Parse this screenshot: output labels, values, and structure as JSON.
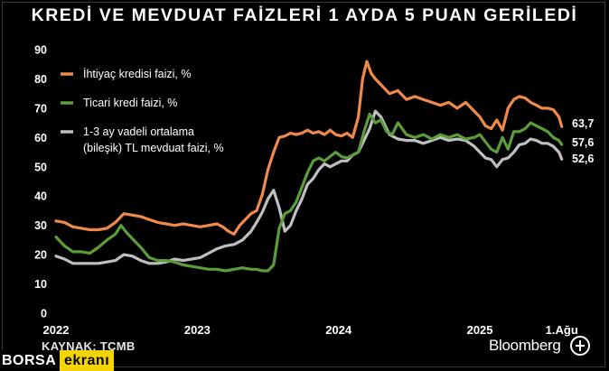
{
  "title": "KREDİ VE MEVDUAT FAİZLERİ 1 AYDA 5 PUAN GERİLEDİ",
  "source": "KAYNAK: TCMB",
  "brand": "Bloomberg",
  "watermark": {
    "part1": "BORSA",
    "part2": "ekranı"
  },
  "chart_data": {
    "type": "line",
    "ylim": [
      0,
      90
    ],
    "yticks": [
      0,
      10,
      20,
      30,
      40,
      50,
      60,
      70,
      80,
      90
    ],
    "xlim": [
      2022.0,
      2025.62
    ],
    "xticks": [
      {
        "pos": 2022.0,
        "label": "2022"
      },
      {
        "pos": 2023.0,
        "label": "2023"
      },
      {
        "pos": 2024.0,
        "label": "2024"
      },
      {
        "pos": 2025.0,
        "label": "2025"
      },
      {
        "pos": 2025.58,
        "label": "1.Ağu"
      }
    ],
    "grid": false,
    "legend_position": "top-left",
    "series": [
      {
        "name": "İhtiyaç kredisi faizi, %",
        "color": "#f08a4b",
        "end_label": "63,7",
        "x": [
          2022.0,
          2022.06,
          2022.12,
          2022.18,
          2022.24,
          2022.3,
          2022.36,
          2022.42,
          2022.48,
          2022.54,
          2022.6,
          2022.66,
          2022.72,
          2022.78,
          2022.84,
          2022.9,
          2022.96,
          2023.02,
          2023.08,
          2023.14,
          2023.18,
          2023.22,
          2023.26,
          2023.3,
          2023.34,
          2023.38,
          2023.42,
          2023.46,
          2023.5,
          2023.54,
          2023.58,
          2023.62,
          2023.66,
          2023.7,
          2023.74,
          2023.78,
          2023.82,
          2023.86,
          2023.9,
          2023.94,
          2023.98,
          2024.02,
          2024.06,
          2024.1,
          2024.14,
          2024.17,
          2024.2,
          2024.23,
          2024.26,
          2024.3,
          2024.36,
          2024.42,
          2024.48,
          2024.54,
          2024.6,
          2024.66,
          2024.72,
          2024.78,
          2024.84,
          2024.9,
          2024.96,
          2025.0,
          2025.04,
          2025.08,
          2025.12,
          2025.16,
          2025.2,
          2025.24,
          2025.28,
          2025.32,
          2025.36,
          2025.4,
          2025.44,
          2025.48,
          2025.52,
          2025.56,
          2025.58
        ],
        "values": [
          31.5,
          31.0,
          29.5,
          29.0,
          28.5,
          28.5,
          29.0,
          31.0,
          34.0,
          33.5,
          33.0,
          32.0,
          31.0,
          30.5,
          30.0,
          30.5,
          30.0,
          29.5,
          30.0,
          30.5,
          29.5,
          28.0,
          27.0,
          30.0,
          32.0,
          34.0,
          35.0,
          40.5,
          49.0,
          55.0,
          60.0,
          60.5,
          61.5,
          61.0,
          61.5,
          62.5,
          61.5,
          62.0,
          61.0,
          62.5,
          61.0,
          60.5,
          61.5,
          60.0,
          67.0,
          80.0,
          86.0,
          82.0,
          80.0,
          78.0,
          75.0,
          76.0,
          73.0,
          74.0,
          73.0,
          72.0,
          71.0,
          72.0,
          70.0,
          72.0,
          69.0,
          67.0,
          64.0,
          63.0,
          66.0,
          62.5,
          70.0,
          73.0,
          74.0,
          73.5,
          72.0,
          71.0,
          70.0,
          70.0,
          69.5,
          67.0,
          63.7
        ]
      },
      {
        "name": "Ticari kredi faizi, %",
        "color": "#5a9d3a",
        "end_label": "57,6",
        "x": [
          2022.0,
          2022.06,
          2022.12,
          2022.18,
          2022.24,
          2022.3,
          2022.36,
          2022.42,
          2022.46,
          2022.5,
          2022.54,
          2022.6,
          2022.66,
          2022.72,
          2022.78,
          2022.84,
          2022.9,
          2022.96,
          2023.02,
          2023.08,
          2023.14,
          2023.2,
          2023.26,
          2023.32,
          2023.38,
          2023.42,
          2023.46,
          2023.5,
          2023.54,
          2023.58,
          2023.62,
          2023.66,
          2023.7,
          2023.74,
          2023.78,
          2023.82,
          2023.86,
          2023.9,
          2023.94,
          2023.98,
          2024.02,
          2024.06,
          2024.1,
          2024.14,
          2024.18,
          2024.22,
          2024.26,
          2024.3,
          2024.34,
          2024.38,
          2024.42,
          2024.48,
          2024.54,
          2024.6,
          2024.66,
          2024.72,
          2024.78,
          2024.84,
          2024.9,
          2024.96,
          2025.0,
          2025.04,
          2025.08,
          2025.12,
          2025.16,
          2025.2,
          2025.24,
          2025.28,
          2025.32,
          2025.36,
          2025.4,
          2025.44,
          2025.48,
          2025.52,
          2025.56,
          2025.58
        ],
        "values": [
          26.0,
          23.0,
          21.0,
          21.0,
          20.5,
          22.5,
          25.0,
          27.0,
          30.0,
          27.5,
          25.5,
          22.5,
          19.0,
          18.0,
          18.0,
          17.5,
          16.5,
          16.0,
          15.5,
          15.0,
          15.0,
          14.5,
          15.0,
          15.5,
          15.0,
          15.0,
          14.5,
          14.5,
          16.5,
          29.0,
          34.0,
          35.0,
          38.0,
          43.0,
          48.0,
          52.0,
          53.0,
          52.0,
          53.5,
          55.0,
          53.5,
          53.0,
          54.0,
          55.0,
          62.0,
          68.0,
          65.0,
          66.0,
          62.0,
          61.0,
          65.0,
          61.0,
          60.0,
          61.0,
          59.5,
          61.0,
          60.0,
          61.0,
          59.5,
          60.0,
          61.0,
          58.5,
          56.0,
          55.0,
          60.0,
          56.0,
          62.0,
          62.0,
          63.0,
          65.0,
          64.0,
          63.0,
          62.0,
          60.0,
          59.0,
          57.6
        ]
      },
      {
        "name": "1-3 ay vadeli ortalama (bileşik) TL mevduat faizi, %",
        "color": "#bfbfbf",
        "end_label": "52,6",
        "x": [
          2022.0,
          2022.06,
          2022.12,
          2022.18,
          2022.24,
          2022.3,
          2022.36,
          2022.42,
          2022.48,
          2022.54,
          2022.6,
          2022.66,
          2022.72,
          2022.78,
          2022.84,
          2022.9,
          2022.96,
          2023.02,
          2023.08,
          2023.14,
          2023.2,
          2023.26,
          2023.32,
          2023.38,
          2023.42,
          2023.46,
          2023.5,
          2023.54,
          2023.58,
          2023.62,
          2023.66,
          2023.7,
          2023.74,
          2023.78,
          2023.82,
          2023.86,
          2023.9,
          2023.94,
          2023.98,
          2024.02,
          2024.06,
          2024.1,
          2024.14,
          2024.18,
          2024.22,
          2024.26,
          2024.3,
          2024.36,
          2024.42,
          2024.48,
          2024.54,
          2024.6,
          2024.66,
          2024.72,
          2024.78,
          2024.84,
          2024.9,
          2024.96,
          2025.0,
          2025.04,
          2025.08,
          2025.12,
          2025.16,
          2025.2,
          2025.24,
          2025.28,
          2025.32,
          2025.36,
          2025.4,
          2025.44,
          2025.48,
          2025.52,
          2025.56,
          2025.58
        ],
        "values": [
          19.5,
          18.5,
          17.0,
          17.0,
          17.0,
          17.0,
          17.5,
          18.0,
          20.0,
          19.5,
          18.0,
          17.0,
          17.0,
          17.5,
          18.5,
          18.0,
          18.5,
          19.0,
          20.5,
          22.0,
          23.0,
          23.5,
          25.0,
          28.0,
          31.0,
          34.5,
          39.0,
          42.0,
          36.0,
          28.0,
          30.0,
          35.0,
          39.0,
          44.0,
          46.0,
          49.0,
          51.0,
          50.0,
          51.0,
          52.0,
          52.0,
          54.0,
          55.0,
          59.0,
          63.0,
          69.0,
          67.0,
          61.0,
          59.5,
          59.0,
          59.0,
          58.0,
          59.0,
          60.0,
          59.0,
          59.5,
          59.0,
          57.0,
          55.0,
          53.0,
          52.5,
          50.0,
          52.5,
          53.0,
          55.0,
          57.5,
          58.0,
          59.5,
          59.0,
          58.0,
          58.0,
          57.0,
          55.0,
          52.6
        ]
      }
    ]
  }
}
